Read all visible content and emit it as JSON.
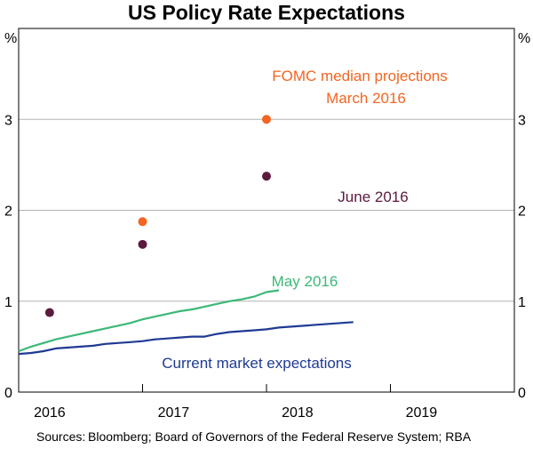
{
  "chart_data": {
    "type": "scatter",
    "title": "US Policy Rate Expectations",
    "ylabel_left": "%",
    "ylabel_right": "%",
    "ylim": [
      0,
      4
    ],
    "xlim": [
      2015.6,
      2019.6
    ],
    "y_ticks": [
      0,
      1,
      2,
      3
    ],
    "x_ticks": [
      {
        "label": "2016",
        "pos": 2015.85
      },
      {
        "label": "2017",
        "pos": 2016.85
      },
      {
        "label": "2018",
        "pos": 2017.85
      },
      {
        "label": "2019",
        "pos": 2018.85
      }
    ],
    "x_gridlines": [
      2016.6,
      2017.6,
      2018.6
    ],
    "grid": true,
    "series": [
      {
        "name": "Current market expectations",
        "kind": "line",
        "color": "#1f3a93",
        "points": [
          [
            2015.6,
            0.42
          ],
          [
            2015.7,
            0.43
          ],
          [
            2015.8,
            0.45
          ],
          [
            2015.9,
            0.48
          ],
          [
            2016.0,
            0.49
          ],
          [
            2016.1,
            0.5
          ],
          [
            2016.2,
            0.51
          ],
          [
            2016.3,
            0.53
          ],
          [
            2016.4,
            0.54
          ],
          [
            2016.5,
            0.55
          ],
          [
            2016.6,
            0.56
          ],
          [
            2016.7,
            0.58
          ],
          [
            2016.8,
            0.59
          ],
          [
            2016.9,
            0.6
          ],
          [
            2017.0,
            0.61
          ],
          [
            2017.1,
            0.61
          ],
          [
            2017.2,
            0.64
          ],
          [
            2017.3,
            0.66
          ],
          [
            2017.4,
            0.67
          ],
          [
            2017.5,
            0.68
          ],
          [
            2017.6,
            0.69
          ],
          [
            2017.7,
            0.71
          ],
          [
            2017.8,
            0.72
          ],
          [
            2017.9,
            0.73
          ],
          [
            2018.0,
            0.74
          ],
          [
            2018.1,
            0.75
          ],
          [
            2018.2,
            0.76
          ],
          [
            2018.3,
            0.77
          ]
        ]
      },
      {
        "name": "May 2016",
        "kind": "line",
        "color": "#3cb878",
        "points": [
          [
            2015.6,
            0.45
          ],
          [
            2015.7,
            0.5
          ],
          [
            2015.8,
            0.54
          ],
          [
            2015.9,
            0.58
          ],
          [
            2016.0,
            0.61
          ],
          [
            2016.1,
            0.64
          ],
          [
            2016.2,
            0.67
          ],
          [
            2016.3,
            0.7
          ],
          [
            2016.4,
            0.73
          ],
          [
            2016.5,
            0.76
          ],
          [
            2016.6,
            0.8
          ],
          [
            2016.7,
            0.83
          ],
          [
            2016.8,
            0.86
          ],
          [
            2016.9,
            0.89
          ],
          [
            2017.0,
            0.91
          ],
          [
            2017.1,
            0.94
          ],
          [
            2017.2,
            0.97
          ],
          [
            2017.3,
            1.0
          ],
          [
            2017.4,
            1.02
          ],
          [
            2017.5,
            1.05
          ],
          [
            2017.6,
            1.1
          ],
          [
            2017.7,
            1.12
          ]
        ]
      },
      {
        "name": "FOMC median projections March 2016",
        "kind": "points",
        "color": "#f26522",
        "points": [
          [
            2016.6,
            1.875
          ],
          [
            2017.6,
            3.0
          ]
        ]
      },
      {
        "name": "June 2016",
        "kind": "points",
        "color": "#5c1a3f",
        "points": [
          [
            2015.85,
            0.875
          ],
          [
            2016.6,
            1.625
          ],
          [
            2017.6,
            2.375
          ]
        ]
      }
    ],
    "annotations": [
      {
        "text": "FOMC median projections",
        "color": "#f26522"
      },
      {
        "text": "March 2016",
        "color": "#f26522"
      },
      {
        "text": "June 2016",
        "color": "#5c1a3f"
      },
      {
        "text": "May 2016",
        "color": "#3cb878"
      },
      {
        "text": "Current market expectations",
        "color": "#1f3a93"
      }
    ]
  },
  "sources": {
    "label": "Sources:",
    "text": "Bloomberg; Board of Governors of the Federal Reserve System; RBA"
  }
}
